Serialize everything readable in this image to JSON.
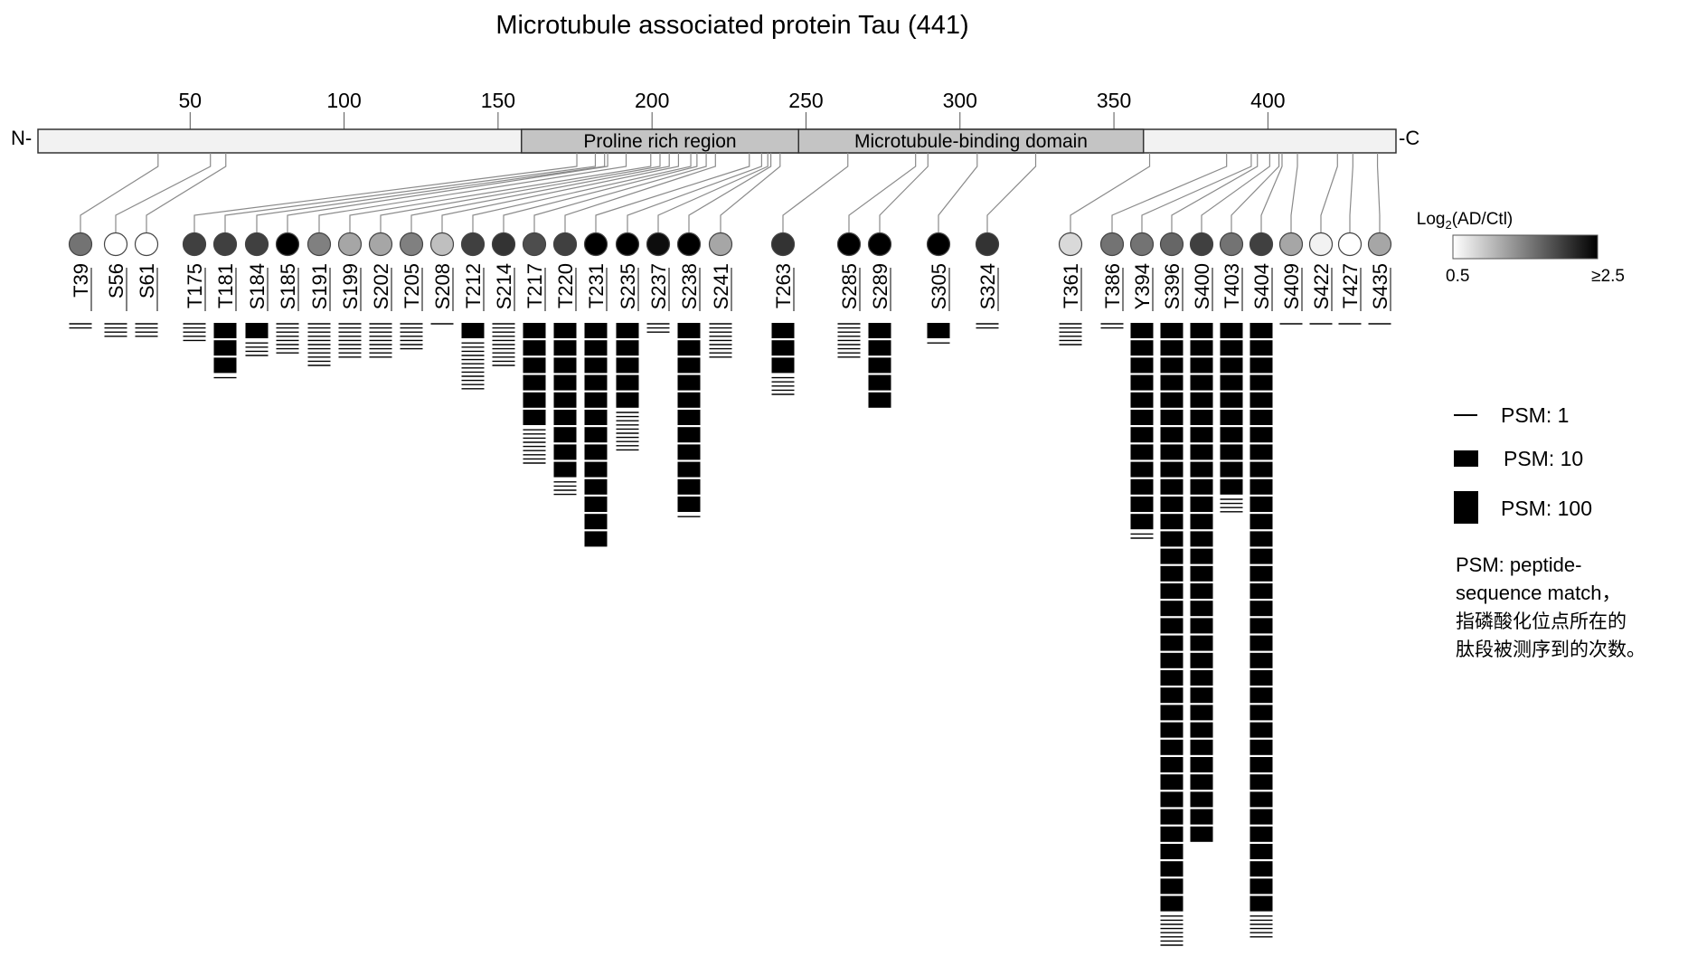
{
  "title": "Microtubule associated protein Tau (441)",
  "protein_length": 441,
  "terminal_n": "N-",
  "terminal_c": "-C",
  "ruler_ticks": [
    50,
    100,
    150,
    200,
    250,
    300,
    350,
    400
  ],
  "domains": [
    {
      "label": "Proline rich region",
      "start": 157,
      "end": 247
    },
    {
      "label": "Microtubule-binding  domain",
      "start": 247,
      "end": 359
    }
  ],
  "sites": [
    {
      "id": "T39",
      "pos": 39,
      "log2": 1.6,
      "psm_blocks": 0,
      "psm_lines": 2
    },
    {
      "id": "S56",
      "pos": 56,
      "log2": 0.5,
      "psm_blocks": 0,
      "psm_lines": 4
    },
    {
      "id": "S61",
      "pos": 61,
      "log2": 0.5,
      "psm_blocks": 0,
      "psm_lines": 4
    },
    {
      "id": "T175",
      "pos": 175,
      "log2": 2.0,
      "psm_blocks": 0,
      "psm_lines": 5
    },
    {
      "id": "T181",
      "pos": 181,
      "log2": 2.0,
      "psm_blocks": 3,
      "psm_lines": 1
    },
    {
      "id": "S184",
      "pos": 184,
      "log2": 2.0,
      "psm_blocks": 1,
      "psm_lines": 4
    },
    {
      "id": "S185",
      "pos": 185,
      "log2": 2.5,
      "psm_blocks": 0,
      "psm_lines": 8
    },
    {
      "id": "S191",
      "pos": 191,
      "log2": 1.5,
      "psm_blocks": 0,
      "psm_lines": 11
    },
    {
      "id": "S199",
      "pos": 199,
      "log2": 1.2,
      "psm_blocks": 0,
      "psm_lines": 9
    },
    {
      "id": "S202",
      "pos": 202,
      "log2": 1.2,
      "psm_blocks": 0,
      "psm_lines": 9
    },
    {
      "id": "T205",
      "pos": 205,
      "log2": 1.5,
      "psm_blocks": 0,
      "psm_lines": 7
    },
    {
      "id": "S208",
      "pos": 208,
      "log2": 1.0,
      "psm_blocks": 0,
      "psm_lines": 1
    },
    {
      "id": "T212",
      "pos": 212,
      "log2": 2.0,
      "psm_blocks": 1,
      "psm_lines": 12
    },
    {
      "id": "S214",
      "pos": 214,
      "log2": 2.1,
      "psm_blocks": 0,
      "psm_lines": 11
    },
    {
      "id": "T217",
      "pos": 217,
      "log2": 1.9,
      "psm_blocks": 6,
      "psm_lines": 9
    },
    {
      "id": "T220",
      "pos": 220,
      "log2": 2.0,
      "psm_blocks": 9,
      "psm_lines": 4
    },
    {
      "id": "T231",
      "pos": 231,
      "log2": 2.5,
      "psm_blocks": 13,
      "psm_lines": 0
    },
    {
      "id": "S235",
      "pos": 235,
      "log2": 2.5,
      "psm_blocks": 5,
      "psm_lines": 10
    },
    {
      "id": "S237",
      "pos": 237,
      "log2": 2.4,
      "psm_blocks": 0,
      "psm_lines": 3
    },
    {
      "id": "S238",
      "pos": 238,
      "log2": 2.5,
      "psm_blocks": 11,
      "psm_lines": 1
    },
    {
      "id": "S241",
      "pos": 241,
      "log2": 1.2,
      "psm_blocks": 0,
      "psm_lines": 9
    },
    {
      "id": "T263",
      "pos": 263,
      "log2": 2.1,
      "psm_blocks": 3,
      "psm_lines": 5
    },
    {
      "id": "S285",
      "pos": 285,
      "log2": 2.5,
      "psm_blocks": 0,
      "psm_lines": 9
    },
    {
      "id": "S289",
      "pos": 289,
      "log2": 2.5,
      "psm_blocks": 5,
      "psm_lines": 0
    },
    {
      "id": "S305",
      "pos": 305,
      "log2": 2.5,
      "psm_blocks": 1,
      "psm_lines": 1
    },
    {
      "id": "S324",
      "pos": 324,
      "log2": 2.1,
      "psm_blocks": 0,
      "psm_lines": 2
    },
    {
      "id": "T361",
      "pos": 361,
      "log2": 0.8,
      "psm_blocks": 0,
      "psm_lines": 6
    },
    {
      "id": "T386",
      "pos": 386,
      "log2": 1.6,
      "psm_blocks": 0,
      "psm_lines": 2
    },
    {
      "id": "Y394",
      "pos": 394,
      "log2": 1.6,
      "psm_blocks": 12,
      "psm_lines": 2
    },
    {
      "id": "S396",
      "pos": 396,
      "log2": 1.7,
      "psm_blocks": 34,
      "psm_lines": 8
    },
    {
      "id": "S400",
      "pos": 400,
      "log2": 2.0,
      "psm_blocks": 30,
      "psm_lines": 0
    },
    {
      "id": "T403",
      "pos": 403,
      "log2": 1.6,
      "psm_blocks": 10,
      "psm_lines": 4
    },
    {
      "id": "S404",
      "pos": 404,
      "log2": 2.0,
      "psm_blocks": 34,
      "psm_lines": 6
    },
    {
      "id": "S409",
      "pos": 409,
      "log2": 1.2,
      "psm_blocks": 0,
      "psm_lines": 1
    },
    {
      "id": "S422",
      "pos": 422,
      "log2": 0.6,
      "psm_blocks": 0,
      "psm_lines": 1
    },
    {
      "id": "T427",
      "pos": 427,
      "log2": 0.5,
      "psm_blocks": 0,
      "psm_lines": 1
    },
    {
      "id": "S435",
      "pos": 435,
      "log2": 1.2,
      "psm_blocks": 0,
      "psm_lines": 1
    }
  ],
  "colorbar": {
    "title_prefix": "Log",
    "title_sub": "2",
    "title_suffix": "(AD/Ctl)",
    "min_label": "0.5",
    "max_label": "≥2.5",
    "min_value": 0.5,
    "max_value": 2.5
  },
  "psm_legend": [
    {
      "label": "PSM: 1"
    },
    {
      "label": "PSM: 10"
    },
    {
      "label": "PSM: 100"
    }
  ],
  "psm_note": [
    "PSM: peptide-",
    "sequence match，",
    "指磷酸化位点所在的",
    "肽段被测序到的次数。"
  ],
  "colors": {
    "bar_fill": "#f2f2f2",
    "domain_fill": "#c4c4c4",
    "outline": "#333333",
    "connector": "#8a8a8a",
    "block": "#000000",
    "low": "#ffffff",
    "high": "#000000"
  }
}
